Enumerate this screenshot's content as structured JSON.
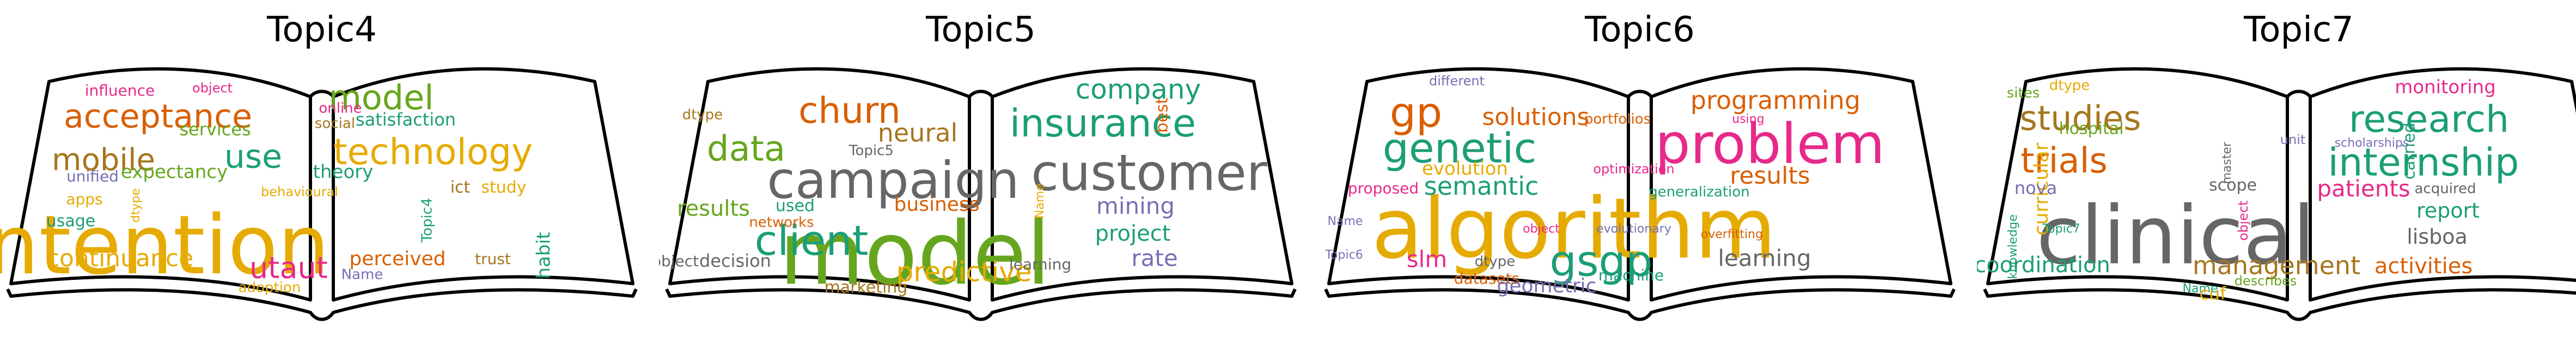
{
  "panels": [
    {
      "title": "Topic4",
      "words": [
        {
          "t": "intention",
          "c": "#E6AB02"
        },
        {
          "t": "acceptance",
          "c": "#D95F02"
        },
        {
          "t": "model",
          "c": "#66A61E"
        },
        {
          "t": "technology",
          "c": "#E6AB02"
        },
        {
          "t": "mobile",
          "c": "#A6761D"
        },
        {
          "t": "use",
          "c": "#1B9E77"
        },
        {
          "t": "utaut",
          "c": "#E7298A"
        },
        {
          "t": "continuance",
          "c": "#E6AB02"
        },
        {
          "t": "perceived",
          "c": "#D95F02"
        },
        {
          "t": "expectancy",
          "c": "#66A61E"
        },
        {
          "t": "theory",
          "c": "#1B9E77"
        },
        {
          "t": "satisfaction",
          "c": "#1B9E77"
        },
        {
          "t": "services",
          "c": "#66A61E"
        },
        {
          "t": "influence",
          "c": "#E7298A"
        },
        {
          "t": "object",
          "c": "#E7298A"
        },
        {
          "t": "online",
          "c": "#E7298A"
        },
        {
          "t": "social",
          "c": "#A6761D"
        },
        {
          "t": "unified",
          "c": "#7570B3"
        },
        {
          "t": "apps",
          "c": "#E6AB02"
        },
        {
          "t": "usage",
          "c": "#1B9E77"
        },
        {
          "t": "dtype",
          "c": "#E6AB02"
        },
        {
          "t": "behavioural",
          "c": "#E6AB02"
        },
        {
          "t": "Topic4",
          "c": "#1B9E77"
        },
        {
          "t": "ict",
          "c": "#A6761D"
        },
        {
          "t": "study",
          "c": "#E6AB02"
        },
        {
          "t": "habit",
          "c": "#1B9E77"
        },
        {
          "t": "trust",
          "c": "#A6761D"
        },
        {
          "t": "Name",
          "c": "#7570B3"
        },
        {
          "t": "adoption",
          "c": "#E6AB02"
        }
      ]
    },
    {
      "title": "Topic5",
      "words": [
        {
          "t": "model",
          "c": "#66A61E"
        },
        {
          "t": "campaign",
          "c": "#666666"
        },
        {
          "t": "customer",
          "c": "#666666"
        },
        {
          "t": "client",
          "c": "#1B9E77"
        },
        {
          "t": "insurance",
          "c": "#1B9E77"
        },
        {
          "t": "churn",
          "c": "#D95F02"
        },
        {
          "t": "data",
          "c": "#66A61E"
        },
        {
          "t": "company",
          "c": "#1B9E77"
        },
        {
          "t": "neural",
          "c": "#A6761D"
        },
        {
          "t": "predictive",
          "c": "#E6AB02"
        },
        {
          "t": "business",
          "c": "#D95F02"
        },
        {
          "t": "results",
          "c": "#66A61E"
        },
        {
          "t": "mining",
          "c": "#7570B3"
        },
        {
          "t": "project",
          "c": "#1B9E77"
        },
        {
          "t": "rate",
          "c": "#7570B3"
        },
        {
          "t": "best",
          "c": "#D95F02"
        },
        {
          "t": "dtype",
          "c": "#A6761D"
        },
        {
          "t": "Topic5",
          "c": "#666666"
        },
        {
          "t": "used",
          "c": "#1B9E77"
        },
        {
          "t": "networks",
          "c": "#D95F02"
        },
        {
          "t": "object",
          "c": "#666666"
        },
        {
          "t": "decision",
          "c": "#666666"
        },
        {
          "t": "Name",
          "c": "#E6AB02"
        },
        {
          "t": "learning",
          "c": "#666666"
        },
        {
          "t": "marketing",
          "c": "#A6761D"
        }
      ]
    },
    {
      "title": "Topic6",
      "words": [
        {
          "t": "algorithm",
          "c": "#E6AB02"
        },
        {
          "t": "problem",
          "c": "#E7298A"
        },
        {
          "t": "genetic",
          "c": "#1B9E77"
        },
        {
          "t": "gp",
          "c": "#D95F02"
        },
        {
          "t": "programming",
          "c": "#D95F02"
        },
        {
          "t": "solutions",
          "c": "#D95F02"
        },
        {
          "t": "semantic",
          "c": "#1B9E77"
        },
        {
          "t": "results",
          "c": "#D95F02"
        },
        {
          "t": "gsgp",
          "c": "#1B9E77"
        },
        {
          "t": "learning",
          "c": "#666666"
        },
        {
          "t": "slm",
          "c": "#E7298A"
        },
        {
          "t": "evolution",
          "c": "#E6AB02"
        },
        {
          "t": "different",
          "c": "#7570B3"
        },
        {
          "t": "portfolios",
          "c": "#D95F02"
        },
        {
          "t": "using",
          "c": "#E7298A"
        },
        {
          "t": "optimization",
          "c": "#E7298A"
        },
        {
          "t": "generalization",
          "c": "#1B9E77"
        },
        {
          "t": "proposed",
          "c": "#E7298A"
        },
        {
          "t": "Name",
          "c": "#7570B3"
        },
        {
          "t": "object",
          "c": "#E7298A"
        },
        {
          "t": "evolutionary",
          "c": "#7570B3"
        },
        {
          "t": "overfitting",
          "c": "#D95F02"
        },
        {
          "t": "Topic6",
          "c": "#7570B3"
        },
        {
          "t": "dtype",
          "c": "#666666"
        },
        {
          "t": "datasets",
          "c": "#D95F02"
        },
        {
          "t": "geometric",
          "c": "#7570B3"
        },
        {
          "t": "machine",
          "c": "#1B9E77"
        }
      ]
    },
    {
      "title": "Topic7",
      "words": [
        {
          "t": "clinical",
          "c": "#666666"
        },
        {
          "t": "research",
          "c": "#1B9E77"
        },
        {
          "t": "internship",
          "c": "#1B9E77"
        },
        {
          "t": "studies",
          "c": "#A6761D"
        },
        {
          "t": "trials",
          "c": "#D95F02"
        },
        {
          "t": "management",
          "c": "#A6761D"
        },
        {
          "t": "coordination",
          "c": "#1B9E77"
        },
        {
          "t": "activities",
          "c": "#D95F02"
        },
        {
          "t": "patients",
          "c": "#E7298A"
        },
        {
          "t": "monitoring",
          "c": "#E7298A"
        },
        {
          "t": "report",
          "c": "#1B9E77"
        },
        {
          "t": "curricular",
          "c": "#E6AB02"
        },
        {
          "t": "hospital",
          "c": "#66A61E"
        },
        {
          "t": "sites",
          "c": "#66A61E"
        },
        {
          "t": "dtype",
          "c": "#E6AB02"
        },
        {
          "t": "carried",
          "c": "#1B9E77"
        },
        {
          "t": "unit",
          "c": "#7570B3"
        },
        {
          "t": "scholarships",
          "c": "#7570B3"
        },
        {
          "t": "nova",
          "c": "#7570B3"
        },
        {
          "t": "scope",
          "c": "#666666"
        },
        {
          "t": "master",
          "c": "#666666"
        },
        {
          "t": "acquired",
          "c": "#666666"
        },
        {
          "t": "object",
          "c": "#E7298A"
        },
        {
          "t": "knowledge",
          "c": "#1B9E77"
        },
        {
          "t": "Topic7",
          "c": "#1B9E77"
        },
        {
          "t": "lisboa",
          "c": "#666666"
        },
        {
          "t": "Name",
          "c": "#1B9E77"
        },
        {
          "t": "cuf",
          "c": "#E6AB02"
        },
        {
          "t": "describes",
          "c": "#66A61E"
        }
      ]
    }
  ]
}
